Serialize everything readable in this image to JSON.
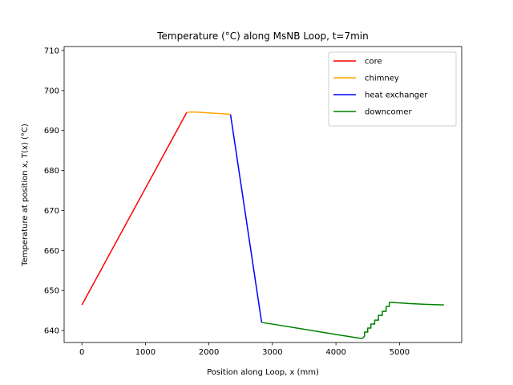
{
  "chart_data": {
    "type": "line",
    "title": "Temperature (°C) along MsNB Loop, t=7min",
    "xlabel": "Position along Loop, x (mm)",
    "ylabel": "Temperature at position x, T(x) (°C)",
    "xlim": [
      -280,
      5980
    ],
    "ylim": [
      637,
      711
    ],
    "xticks": [
      0,
      1000,
      2000,
      3000,
      4000,
      5000
    ],
    "yticks": [
      640,
      650,
      660,
      670,
      680,
      690,
      700,
      710
    ],
    "grid": false,
    "legend_position": "top-right",
    "series": [
      {
        "name": "core",
        "color": "#ff0000",
        "x": [
          0,
          1650
        ],
        "y": [
          646.4,
          694.5
        ]
      },
      {
        "name": "chimney",
        "color": "#ffa500",
        "x": [
          1650,
          1700,
          1800,
          1900,
          2000,
          2100,
          2200,
          2300,
          2340
        ],
        "y": [
          694.5,
          694.6,
          694.6,
          694.5,
          694.4,
          694.3,
          694.2,
          694.1,
          694.0
        ]
      },
      {
        "name": "heat exchanger",
        "color": "#0000ff",
        "x": [
          2340,
          2830
        ],
        "y": [
          694.0,
          642.0
        ]
      },
      {
        "name": "downcomer",
        "color": "#008000",
        "x": [
          2830,
          3000,
          3500,
          4000,
          4400,
          4430,
          4450,
          4450,
          4500,
          4500,
          4550,
          4550,
          4610,
          4610,
          4670,
          4670,
          4730,
          4730,
          4790,
          4790,
          4840,
          4840,
          4890,
          4890,
          5000,
          5200,
          5400,
          5600,
          5700
        ],
        "y": [
          642.0,
          641.6,
          640.3,
          639.0,
          638.0,
          638.2,
          638.6,
          639.6,
          639.6,
          640.6,
          640.6,
          641.6,
          641.6,
          642.6,
          642.6,
          643.8,
          643.8,
          644.8,
          644.8,
          646.0,
          646.0,
          647.0,
          647.0,
          647.0,
          646.9,
          646.7,
          646.55,
          646.45,
          646.4
        ]
      }
    ]
  }
}
